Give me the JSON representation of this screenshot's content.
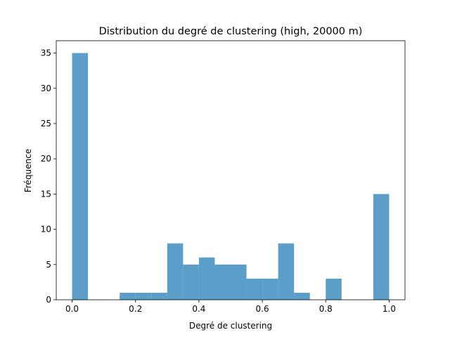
{
  "chart_data": {
    "type": "bar",
    "title": "Distribution du degré de clustering (high, 20000 m)",
    "xlabel": "Degré de clustering",
    "ylabel": "Fréquence",
    "xlim": [
      -0.05,
      1.05
    ],
    "ylim": [
      0,
      36.75
    ],
    "xticks": [
      "0.0",
      "0.2",
      "0.4",
      "0.6",
      "0.8",
      "1.0"
    ],
    "yticks": [
      "0",
      "5",
      "10",
      "15",
      "20",
      "25",
      "30",
      "35"
    ],
    "bin_width": 0.05,
    "bin_starts": [
      0.0,
      0.05,
      0.1,
      0.15,
      0.2,
      0.25,
      0.3,
      0.35,
      0.4,
      0.45,
      0.5,
      0.55,
      0.6,
      0.65,
      0.7,
      0.75,
      0.8,
      0.85,
      0.9,
      0.95
    ],
    "values": [
      35,
      0,
      0,
      1,
      1,
      1,
      8,
      5,
      6,
      5,
      5,
      3,
      3,
      8,
      1,
      0,
      3,
      0,
      0,
      15
    ],
    "bar_color": "#5b9ec9",
    "grid": false
  }
}
